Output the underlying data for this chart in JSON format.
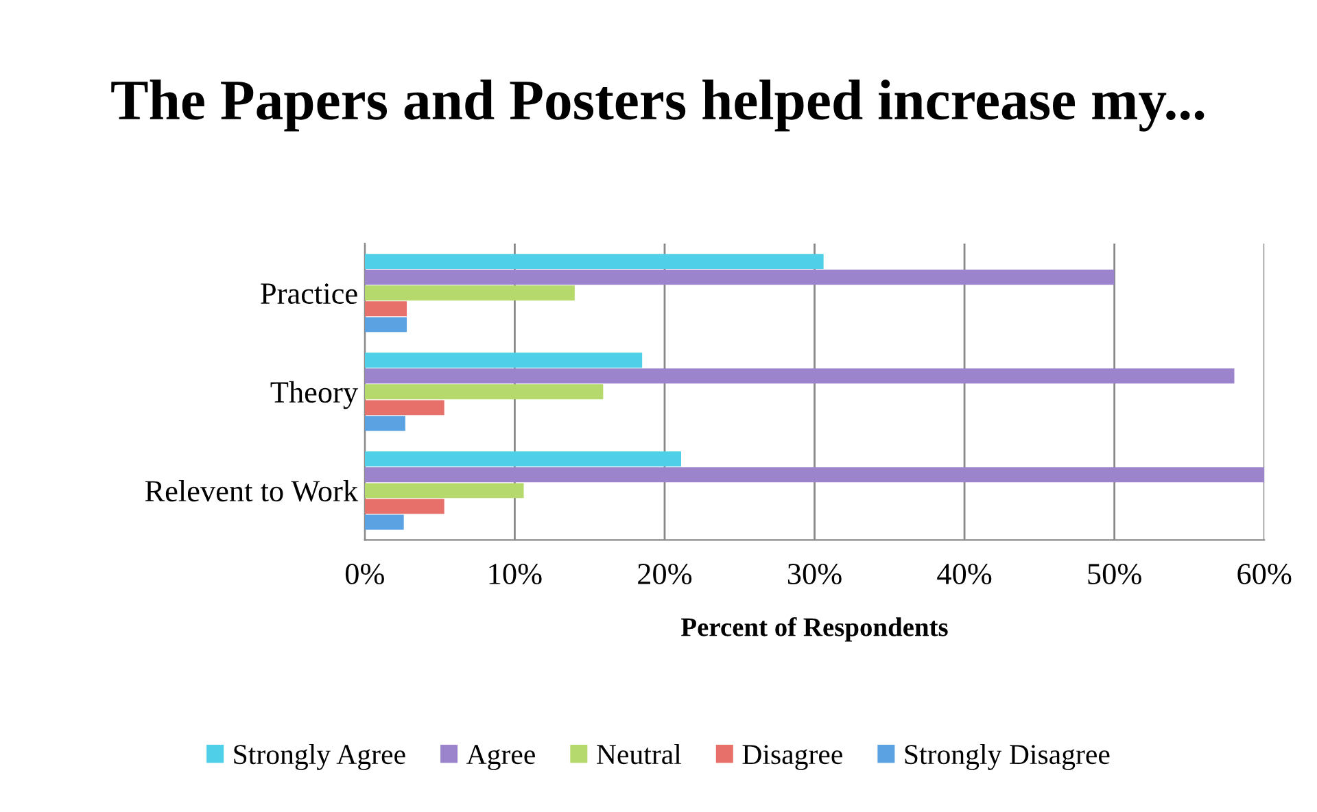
{
  "chart_data": {
    "type": "bar",
    "orientation": "horizontal",
    "title": "The Papers and Posters helped increase my...",
    "xlabel": "Percent of Respondents",
    "categories": [
      "Practice",
      "Theory",
      "Relevent to Work"
    ],
    "series": [
      {
        "name": "Strongly Agree",
        "color": "#4fd0e8",
        "values": [
          30.6,
          18.5,
          21.1
        ]
      },
      {
        "name": "Agree",
        "color": "#9b84cc",
        "values": [
          50.0,
          58.0,
          60.0
        ]
      },
      {
        "name": "Neutral",
        "color": "#b5d96c",
        "values": [
          14.0,
          15.9,
          10.6
        ]
      },
      {
        "name": "Disagree",
        "color": "#e8706a",
        "values": [
          2.8,
          5.3,
          5.3
        ]
      },
      {
        "name": "Strongly Disagree",
        "color": "#5ba2e2",
        "values": [
          2.8,
          2.7,
          2.6
        ]
      }
    ],
    "xlim": [
      0,
      60
    ],
    "xticks": [
      {
        "value": 0,
        "label": "0%"
      },
      {
        "value": 10,
        "label": "10%"
      },
      {
        "value": 20,
        "label": "20%"
      },
      {
        "value": 30,
        "label": "30%"
      },
      {
        "value": 40,
        "label": "40%"
      },
      {
        "value": 50,
        "label": "50%"
      },
      {
        "value": 60,
        "label": "60%"
      }
    ],
    "grid": "x",
    "legend": "bottom"
  }
}
